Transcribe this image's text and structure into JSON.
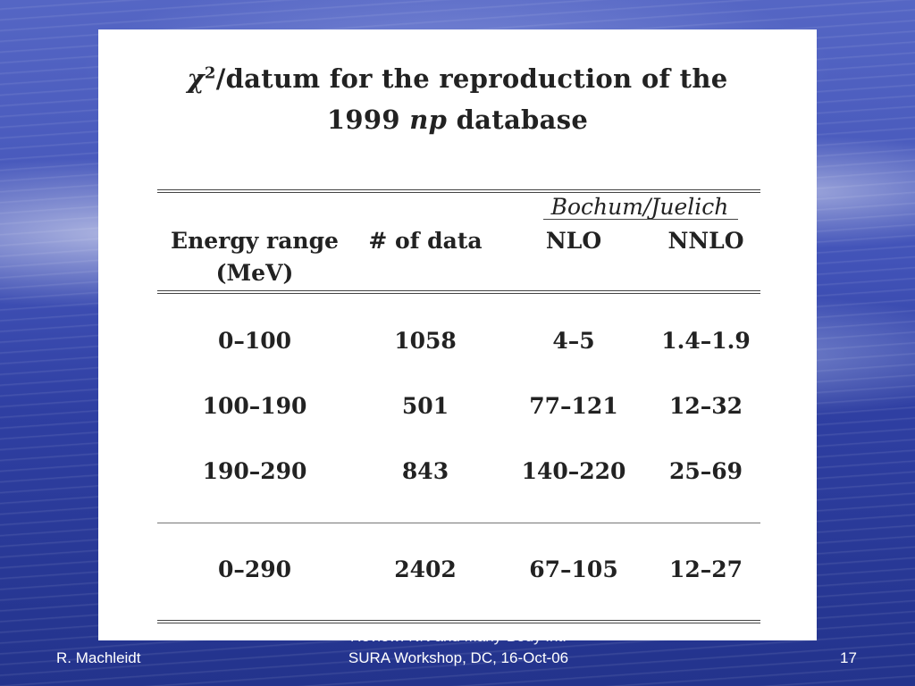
{
  "slide": {
    "title_line1_prefix": "χ",
    "title_line1_sup": "2",
    "title_line1_rest": "/datum for the reproduction of the",
    "title_line2_prefix": "1999 ",
    "title_line2_italic": "np",
    "title_line2_rest": " database"
  },
  "table": {
    "group_label": "Bochum/Juelich",
    "headers": {
      "energy_line1": "Energy range",
      "energy_line2": "(MeV)",
      "data": "# of data",
      "nlo": "NLO",
      "nnlo": "NNLO"
    },
    "rows": [
      {
        "energy": "0–100",
        "data": "1058",
        "nlo": "4–5",
        "nnlo": "1.4–1.9"
      },
      {
        "energy": "100–190",
        "data": "501",
        "nlo": "77–121",
        "nnlo": "12–32"
      },
      {
        "energy": "190–290",
        "data": "843",
        "nlo": "140–220",
        "nnlo": "25–69"
      }
    ],
    "total": {
      "energy": "0–290",
      "data": "2402",
      "nlo": "67–105",
      "nnlo": "12–27"
    }
  },
  "footer": {
    "author": "R. Machleidt",
    "event_line1": "Review: NN and Many-Body Int.",
    "event_line2": "SURA Workshop, DC, 16-Oct-06",
    "page_number": "17"
  }
}
